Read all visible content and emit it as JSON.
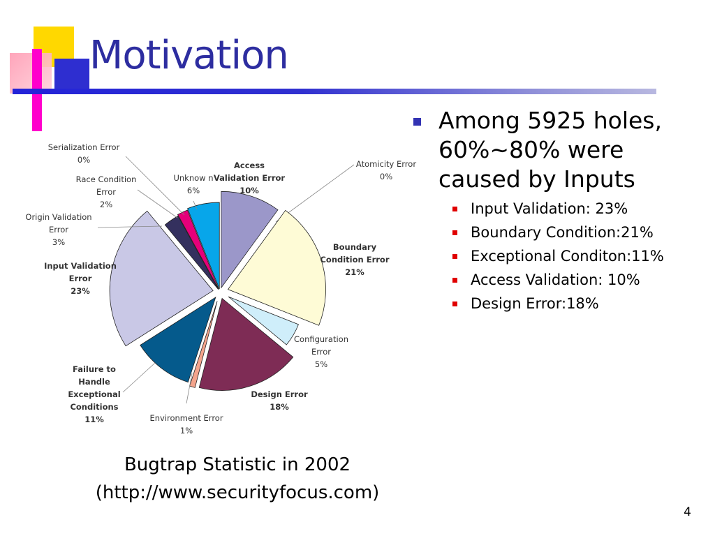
{
  "title": "Motivation",
  "bullets": {
    "main": [
      "Among 5925 holes,",
      "60%∼80% were",
      "caused by Inputs"
    ],
    "sub": [
      "Input Validation: 23%",
      "Boundary Condition:21%",
      "Exceptional Conditon:11%",
      "Access Validation: 10%",
      "Design Error:18%"
    ]
  },
  "caption": [
    "Bugtrap Statistic in 2002",
    "(http://www.securityfocus.com)"
  ],
  "page_number": "4",
  "chart_data": {
    "type": "pie",
    "title": "",
    "slices": [
      {
        "name": "Access\nValidation Error",
        "pct": "10%",
        "value": 10,
        "color": "#9b97c9",
        "label": "Access\nValidation Error\n10%"
      },
      {
        "name": "Atomicity Error",
        "pct": "0%",
        "value": 0,
        "color": "#c0c0c0",
        "label": "Atomicity Error\n0%"
      },
      {
        "name": "Boundary\nCondition Error",
        "pct": "21%",
        "value": 21,
        "color": "#fefbd6",
        "label": "Boundary\nCondition Error\n21%"
      },
      {
        "name": "Configuration\nError",
        "pct": "5%",
        "value": 5,
        "color": "#cfeefa",
        "label": "Configuration\nError\n5%"
      },
      {
        "name": "Design Error",
        "pct": "18%",
        "value": 18,
        "color": "#7e2c55",
        "label": "Design Error\n18%"
      },
      {
        "name": "Environment Error",
        "pct": "1%",
        "value": 1,
        "color": "#f4a48c",
        "label": "Environment Error\n1%"
      },
      {
        "name": "Failure to\nHandle\nExceptional\nConditions",
        "pct": "11%",
        "value": 11,
        "color": "#055a8c",
        "label": "Failure to\nHandle\nExceptional\nConditions\n11%"
      },
      {
        "name": "Input Validation\nError",
        "pct": "23%",
        "value": 23,
        "color": "#c9c8e6",
        "label": "Input Validation\nError\n23%"
      },
      {
        "name": "Origin Validation\nError",
        "pct": "3%",
        "value": 3,
        "color": "#34305e",
        "label": "Origin Validation\nError\n3%"
      },
      {
        "name": "Race Condition\nError",
        "pct": "2%",
        "value": 2,
        "color": "#e6007a",
        "label": "Race Condition\nError\n2%"
      },
      {
        "name": "Serialization Error",
        "pct": "0%",
        "value": 0,
        "color": "#c0c0c0",
        "label": "Serialization Error\n0%"
      },
      {
        "name": "Unknown",
        "pct": "6%",
        "value": 6,
        "color": "#07a6ea",
        "label": "Unknow n\n6%"
      }
    ]
  },
  "colors": {
    "title": "#2d2da0",
    "bullet_main": "#3333b3",
    "bullet_sub": "#e00000",
    "deco_yellow": "#ffd800",
    "deco_magenta": "#ff00cc",
    "deco_blue": "#2e2ed0"
  }
}
